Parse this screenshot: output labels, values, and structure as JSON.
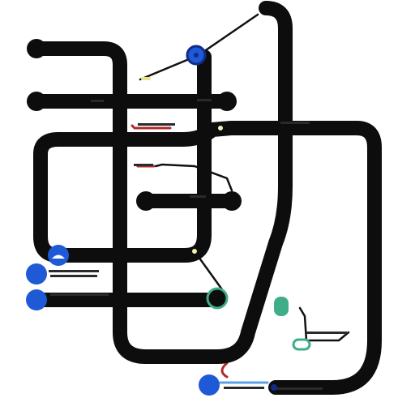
{
  "diagram": {
    "kind": "transit-style line map",
    "colors": {
      "background": "#ffffff",
      "route": "#0d0d0d",
      "connector": "#111111",
      "node_blue": "#1e5ad6",
      "node_dark_blue": "#102a8a",
      "node_green": "#3fae88",
      "accent_red": "#b02a2a",
      "accent_yellow": "#e8e48a",
      "accent_light_blue": "#5aa0e8"
    },
    "nodes": [
      {
        "id": "n-top-left",
        "color": "black"
      },
      {
        "id": "n-left-2",
        "color": "black"
      },
      {
        "id": "n-blue-top",
        "color": "blue"
      },
      {
        "id": "n-right-1",
        "color": "black"
      },
      {
        "id": "n-mid-left",
        "color": "black"
      },
      {
        "id": "n-mid-right",
        "color": "black"
      },
      {
        "id": "n-blue-small",
        "color": "blue"
      },
      {
        "id": "n-blue-left-1",
        "color": "blue"
      },
      {
        "id": "n-blue-left-2",
        "color": "blue"
      },
      {
        "id": "n-green-bottom",
        "color": "green"
      },
      {
        "id": "n-green-right",
        "color": "green"
      },
      {
        "id": "n-blue-bottom",
        "color": "blue"
      },
      {
        "id": "n-dark-blue-bottom",
        "color": "dark-blue"
      }
    ],
    "labels": []
  }
}
